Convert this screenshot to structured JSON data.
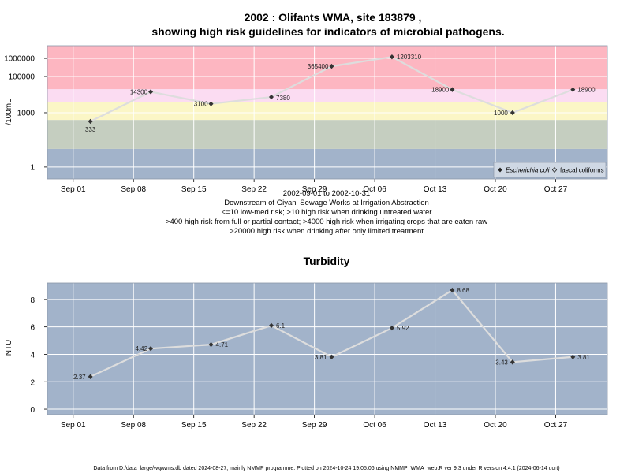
{
  "chart_data": [
    {
      "type": "line",
      "title_line1": "2002 : Olifants WMA, site 183879 ,",
      "title_line2": "showing high risk guidelines for indicators of microbial pathogens.",
      "ylabel": "/100mL",
      "yscale": "log",
      "ylim": [
        0.22,
        5000000
      ],
      "xlim": [
        "2002-08-29",
        "2002-11-02"
      ],
      "ytick_labels": [
        "1",
        "1000",
        "100000",
        "1000000"
      ],
      "ytick_values": [
        1,
        1000,
        100000,
        1000000
      ],
      "xtick_labels": [
        "Sep 01",
        "Sep 08",
        "Sep 15",
        "Sep 22",
        "Sep 29",
        "Oct 06",
        "Oct 13",
        "Oct 20",
        "Oct 27"
      ],
      "xtick_dates": [
        "2002-09-01",
        "2002-09-08",
        "2002-09-15",
        "2002-09-22",
        "2002-09-29",
        "2002-10-06",
        "2002-10-13",
        "2002-10-20",
        "2002-10-27"
      ],
      "bands": [
        {
          "from": 0.22,
          "to": 10,
          "color": "#a2b3ca"
        },
        {
          "from": 10,
          "to": 400,
          "color": "#c5cec0"
        },
        {
          "from": 400,
          "to": 4000,
          "color": "#fbf6c6"
        },
        {
          "from": 4000,
          "to": 20000,
          "color": "#fbdcf2"
        },
        {
          "from": 20000,
          "to": 5000000,
          "color": "#fdb6c1"
        }
      ],
      "series": [
        {
          "name": "Escherichia coli",
          "x": [
            "2002-09-03",
            "2002-09-10",
            "2002-09-17",
            "2002-09-24",
            "2002-10-01",
            "2002-10-08",
            "2002-10-15",
            "2002-10-22",
            "2002-10-29"
          ],
          "values": [
            333,
            14300,
            3100,
            7380,
            365400,
            1203310,
            18900,
            1000,
            18900
          ]
        }
      ],
      "legend": {
        "placement": "bottom-right",
        "entries": [
          "Escherichia coli",
          "faecal coliforms"
        ]
      },
      "subtitle_lines": [
        "2002-09-01 to 2002-10-31",
        "Downstream of Giyani Sewage Works at Irrigation Abstraction",
        "<=10 low-med risk; >10 high risk when drinking untreated water",
        ">400 high risk from full or partial contact; >4000 high risk when irrigating crops that are eaten raw",
        ">20000 high risk when drinking after only limited treatment"
      ],
      "colors": {
        "line": "#dddddd",
        "marker": "#333333",
        "grid": "#ffffff"
      }
    },
    {
      "type": "line",
      "title": "Turbidity",
      "ylabel": "NTU",
      "ylim": [
        -0.4,
        9.2
      ],
      "xlim": [
        "2002-08-29",
        "2002-11-02"
      ],
      "ytick_values": [
        0,
        2,
        4,
        6,
        8
      ],
      "ytick_labels": [
        "0",
        "2",
        "4",
        "6",
        "8"
      ],
      "xtick_labels": [
        "Sep 01",
        "Sep 08",
        "Sep 15",
        "Sep 22",
        "Sep 29",
        "Oct 06",
        "Oct 13",
        "Oct 20",
        "Oct 27"
      ],
      "xtick_dates": [
        "2002-09-01",
        "2002-09-08",
        "2002-09-15",
        "2002-09-22",
        "2002-09-29",
        "2002-10-06",
        "2002-10-13",
        "2002-10-20",
        "2002-10-27"
      ],
      "series": [
        {
          "x": [
            "2002-09-03",
            "2002-09-10",
            "2002-09-17",
            "2002-09-24",
            "2002-10-01",
            "2002-10-08",
            "2002-10-15",
            "2002-10-22",
            "2002-10-29"
          ],
          "values": [
            2.37,
            4.42,
            4.71,
            6.1,
            3.81,
            5.92,
            8.68,
            3.43,
            3.81
          ]
        }
      ],
      "colors": {
        "background": "#a2b3ca",
        "line": "#dddddd",
        "marker": "#333333",
        "grid": "#ffffff"
      }
    }
  ],
  "footer": "Data from D:/data_large/wq/wms.db dated 2024-08-27, mainly NMMP programme. Plotted on 2024-10-24 19:05:06 using NMMP_WMA_web.R ver 9.3 under R version 4.4.1 (2024-06-14 ucrt)"
}
